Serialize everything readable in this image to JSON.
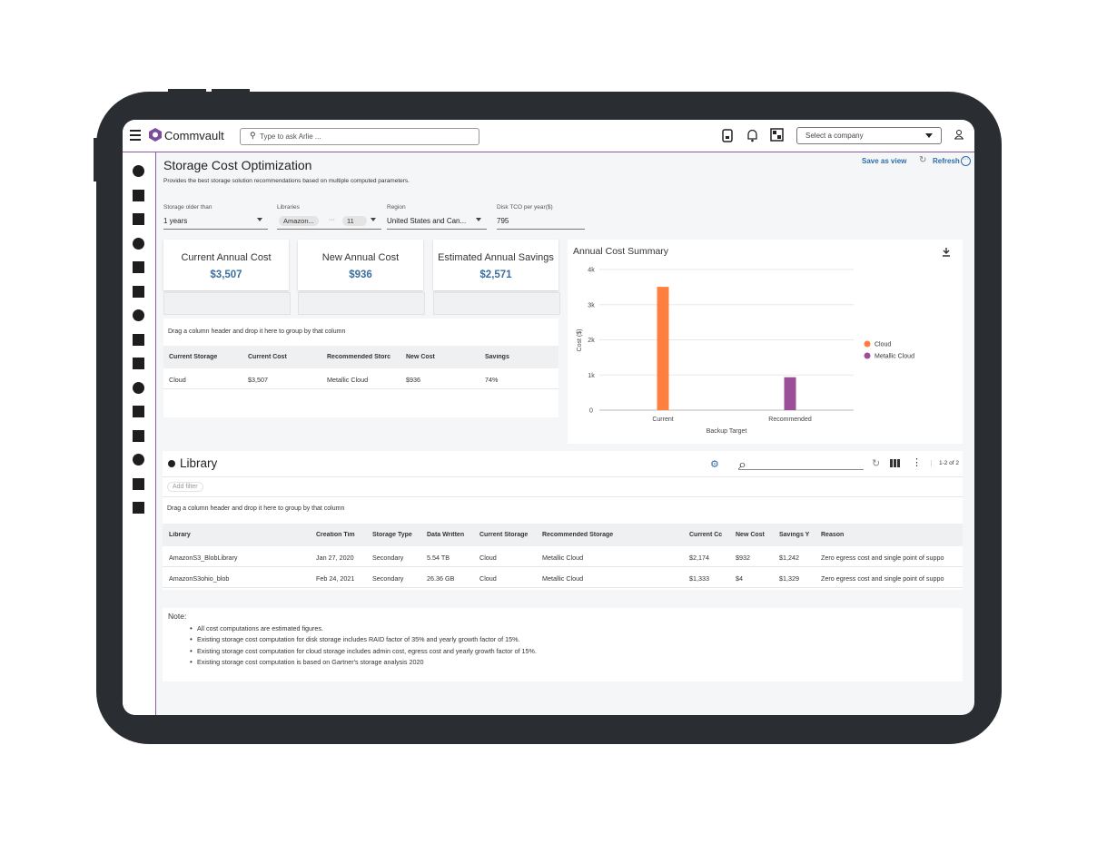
{
  "header": {
    "brand": "Commvault",
    "search_placeholder": "Type to ask Arlie ...",
    "company_select": "Select a company"
  },
  "page": {
    "title": "Storage Cost Optimization",
    "subtitle": "Provides the best storage solution recommendations based on multiple computed parameters.",
    "save_view": "Save as view",
    "refresh": "Refresh"
  },
  "filters": [
    {
      "label": "Storage older than",
      "value": "1 years"
    },
    {
      "label": "Libraries",
      "value": "Amazon...",
      "count": "11"
    },
    {
      "label": "Region",
      "value": "United States and Can..."
    },
    {
      "label": "Disk TCO per year($)",
      "value": "795"
    }
  ],
  "kpis": [
    {
      "label": "Current Annual Cost",
      "value": "$3,507"
    },
    {
      "label": "New Annual Cost",
      "value": "$936"
    },
    {
      "label": "Estimated Annual Savings",
      "value": "$2,571"
    }
  ],
  "summary_table": {
    "group_hint": "Drag a column header and drop it here to group by that column",
    "columns": [
      "Current Storage",
      "Current Cost",
      "Recommended Storc",
      "New Cost",
      "Savings"
    ],
    "rows": [
      [
        "Cloud",
        "$3,507",
        "Metallic Cloud",
        "$936",
        "74%"
      ]
    ]
  },
  "chart_data": {
    "type": "bar",
    "title": "Annual Cost Summary",
    "x_label": "Backup Target",
    "y_label": "Cost ($)",
    "categories": [
      "Current",
      "Recommended"
    ],
    "series": [
      {
        "name": "Cloud",
        "color": "#ff7f3f",
        "values": [
          3507,
          null
        ]
      },
      {
        "name": "Metallic Cloud",
        "color": "#9c4f98",
        "values": [
          null,
          936
        ]
      }
    ],
    "ylim": [
      0,
      4000
    ],
    "yticks": [
      0,
      {
        "value": 1000,
        "label": "1k"
      },
      {
        "value": 2000,
        "label": "2k"
      },
      {
        "value": 3000,
        "label": "3k"
      },
      {
        "value": 4000,
        "label": "4k"
      }
    ],
    "grid": true,
    "legend": "right"
  },
  "library": {
    "title": "Library",
    "add_filter": "Add filter",
    "group_hint": "Drag a column header and drop it here to group by that column",
    "pager": "1-2 of 2",
    "columns": [
      "Library",
      "Creation Tim",
      "Storage Type",
      "Data Written",
      "Current Storage",
      "Recommended Storage",
      "Current Cc",
      "New Cost",
      "Savings Y",
      "Reason"
    ],
    "rows": [
      [
        "AmazonS3_BlobLibrary",
        "Jan 27, 2020",
        "Secondary",
        "5.54 TB",
        "Cloud",
        "Metallic Cloud",
        "$2,174",
        "$932",
        "$1,242",
        "Zero egress cost and single point of suppo"
      ],
      [
        "AmazonS3ohio_blob",
        "Feb 24, 2021",
        "Secondary",
        "26.36 GB",
        "Cloud",
        "Metallic Cloud",
        "$1,333",
        "$4",
        "$1,329",
        "Zero egress cost and single point of suppo"
      ]
    ]
  },
  "notes": {
    "title": "Note:",
    "items": [
      "All cost computations are estimated figures.",
      "Existing storage cost computation for disk storage includes RAID factor of 35% and yearly growth factor of 15%.",
      "Existing storage cost computation for cloud storage includes admin cost, egress cost and yearly growth factor of 15%.",
      "Existing storage cost computation is based on Gartner's storage analysis 2020"
    ]
  }
}
